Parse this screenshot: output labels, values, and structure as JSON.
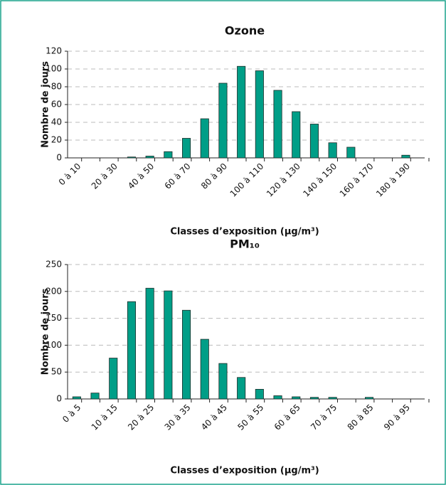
{
  "chart_data": [
    {
      "type": "bar",
      "title": "Ozone",
      "xlabel": "Classes d’exposition (µg/m³)",
      "ylabel": "Nombre de jours",
      "categories": [
        "0 à 10",
        null,
        "20 à 30",
        null,
        "40 à 50",
        null,
        "60 à 70",
        null,
        "80 à 90",
        null,
        "100 à 110",
        null,
        "120 à 130",
        null,
        "140 à 150",
        null,
        "160 à 170",
        null,
        "180 à 190",
        null
      ],
      "values": [
        0,
        0,
        0,
        1,
        2,
        7,
        22,
        44,
        84,
        103,
        98,
        76,
        52,
        38,
        17,
        12,
        0,
        0,
        3,
        0
      ],
      "color": "#009e87",
      "ylim": [
        0,
        120
      ],
      "yticks": [
        0,
        20,
        40,
        60,
        80,
        100,
        120
      ],
      "grid": true
    },
    {
      "type": "bar",
      "title": "PM₁₀",
      "xlabel": "Classes d’exposition (µg/m³)",
      "ylabel": "Nombre de jours",
      "categories": [
        "0 à 5",
        null,
        "10 à 15",
        null,
        "20 à 25",
        null,
        "30 à 35",
        null,
        "40 à 45",
        null,
        "50 à 55",
        null,
        "60 à 65",
        null,
        "70 à 75",
        null,
        "80 à 85",
        null,
        "90 à 95",
        null
      ],
      "values": [
        4,
        11,
        76,
        181,
        206,
        201,
        165,
        111,
        66,
        40,
        18,
        6,
        4,
        3,
        3,
        0,
        3,
        0,
        0,
        0
      ],
      "color": "#009e87",
      "ylim": [
        0,
        250
      ],
      "yticks": [
        0,
        50,
        100,
        150,
        200,
        250
      ],
      "grid": true
    }
  ]
}
